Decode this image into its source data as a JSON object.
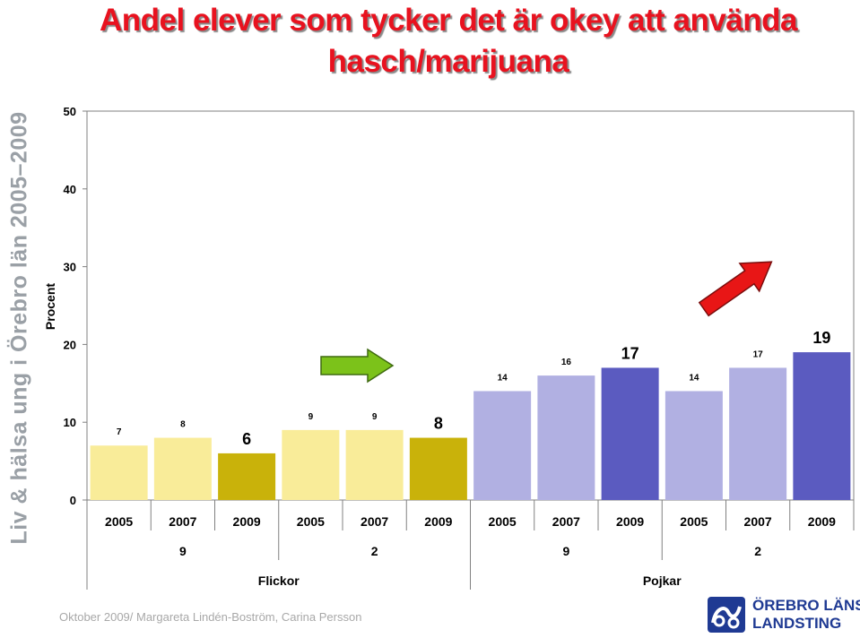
{
  "slide": {
    "title": "Andel elever som tycker det är okey att använda hasch/marijuana",
    "side_text": "Liv & hälsa ung i Örebro län 2005–2009",
    "footer": "Oktober 2009/ Margareta Lindén-Boström, Carina Persson",
    "logo_line1": "ÖREBRO LÄNS",
    "logo_line2": "LANDSTING",
    "logo_name": "orebro-lans-landsting-logo"
  },
  "chart_data": {
    "type": "bar",
    "title": "Andel elever som tycker det är okey att använda hasch/marijuana",
    "ylabel": "Procent",
    "ylim": [
      0,
      50
    ],
    "yticks": [
      0,
      10,
      20,
      30,
      40,
      50
    ],
    "grid": false,
    "categories": [
      "2005",
      "2007",
      "2009",
      "2005",
      "2007",
      "2009",
      "2005",
      "2007",
      "2009",
      "2005",
      "2007",
      "2009"
    ],
    "values": [
      7,
      8,
      6,
      9,
      9,
      8,
      14,
      16,
      17,
      14,
      17,
      19
    ],
    "group_labels_level2": [
      "9",
      "2",
      "9",
      "2"
    ],
    "group_labels_level1": [
      "Flickor",
      "Pojkar"
    ],
    "bar_colors": [
      "#f9ec99",
      "#f9ec99",
      "#c9b20a",
      "#f9ec99",
      "#f9ec99",
      "#c9b20a",
      "#b1b0e2",
      "#b1b0e2",
      "#5b5bc0",
      "#b1b0e2",
      "#b1b0e2",
      "#5b5bc0"
    ],
    "annotations": [
      {
        "type": "arrow",
        "direction": "right",
        "color": "#7cc21a"
      },
      {
        "type": "arrow",
        "direction": "up-right",
        "color": "#e81616"
      }
    ]
  }
}
